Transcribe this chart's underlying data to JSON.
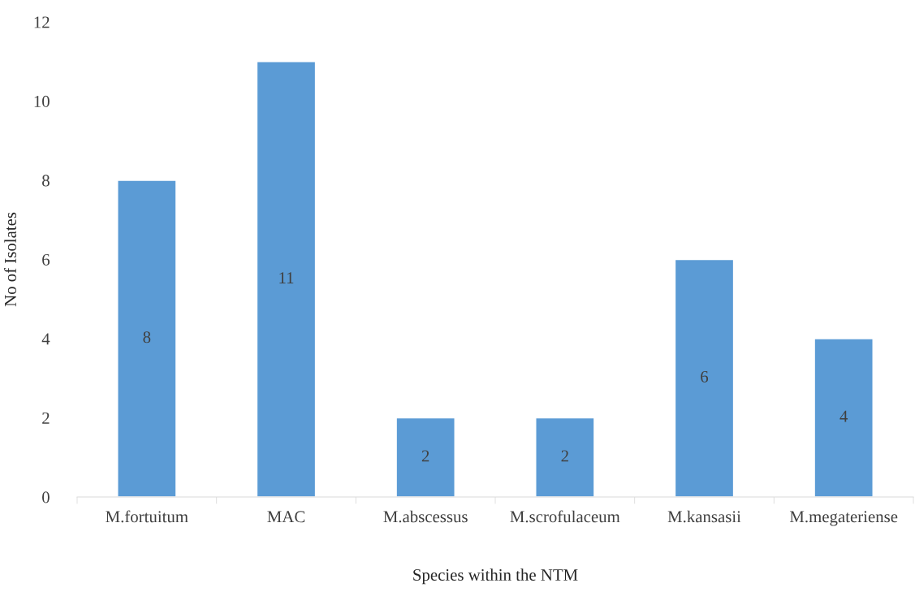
{
  "chart_data": {
    "type": "bar",
    "xlabel": "Species within the NTM",
    "ylabel": "No of Isolates",
    "categories": [
      "M.fortuitum",
      "MAC",
      "M.abscessus",
      "M.scrofulaceum",
      "M.kansasii",
      "M.megateriense"
    ],
    "values": [
      8,
      11,
      2,
      2,
      6,
      4
    ],
    "color": "#5b9bd5",
    "ylim": [
      0,
      12
    ],
    "yticks": [
      0,
      2,
      4,
      6,
      8,
      10,
      12
    ],
    "grid": false,
    "data_labels": true
  }
}
